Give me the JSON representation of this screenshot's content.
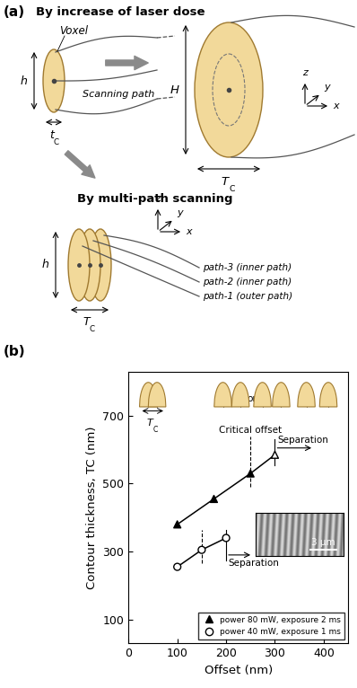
{
  "diagram": {
    "panel_labels": [
      "(a)",
      "(b)"
    ],
    "heading_1": "By increase of laser dose",
    "voxel": "Voxel",
    "scanning_path": "Scanning path",
    "small_height": "h",
    "small_thickness": "tC",
    "large_height": "H",
    "large_thickness": "TC",
    "axes_1": [
      "z",
      "y",
      "x"
    ],
    "heading_2": "By multi-path scanning",
    "multi_height": "h",
    "multi_thickness": "TC",
    "axes_2": [
      "z",
      "y",
      "x"
    ],
    "paths": [
      "path-3 (inner path)",
      "path-2 (inner path)",
      "path-1 (outer path)"
    ]
  },
  "chart_data": {
    "type": "line",
    "x_label": "Offset (nm)",
    "y_label": "Contour thickness, TC (nm)",
    "xlim": [
      0,
      450
    ],
    "ylim": [
      30,
      830
    ],
    "xticks": [
      0,
      100,
      200,
      300,
      400
    ],
    "yticks": [
      100,
      300,
      500,
      700
    ],
    "legend": "lower right",
    "series": [
      {
        "name": "power 80 mW, exposure 2 ms",
        "color": "#000000",
        "marker": "triangle",
        "x": [
          100,
          175,
          250,
          300
        ],
        "values": [
          380,
          455,
          530,
          585
        ],
        "colors": [
          "#000000",
          "#000000",
          "#000000",
          "#ffffff"
        ]
      },
      {
        "name": "power 40 mW, exposure 1 ms",
        "color": "#000000",
        "marker": "circle",
        "x": [
          100,
          150,
          200
        ],
        "values": [
          255,
          305,
          340
        ],
        "colors": [
          "#ffffff",
          "#ffffff",
          "#ffffff"
        ]
      }
    ],
    "critical_offset": {
      "text": "Critical offset",
      "x": [
        250,
        150
      ]
    },
    "separation": {
      "text": "Separation",
      "x": [
        300,
        200
      ]
    },
    "icons": {
      "thickness": "TC",
      "or": "or"
    },
    "scale_bar": "3 μm"
  }
}
